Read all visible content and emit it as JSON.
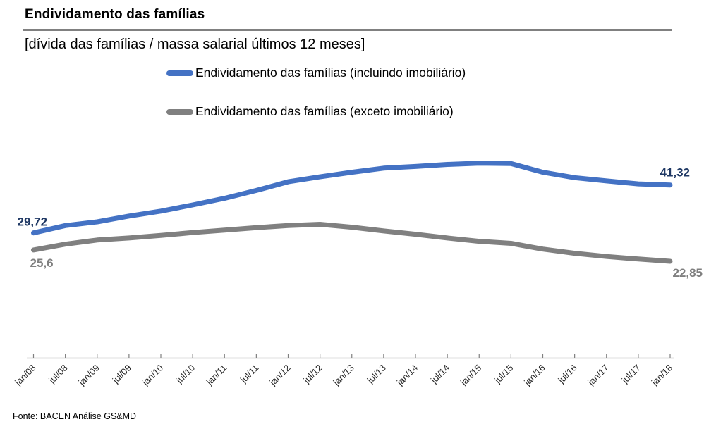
{
  "header": {
    "title": "Endividamento das famílias",
    "subtitle": "[dívida das famílias / massa salarial últimos 12 meses]"
  },
  "legend": [
    {
      "label": "Endividamento das famílias (incluindo imobiliário)",
      "color": "#4472C4"
    },
    {
      "label": "Endividamento das famílias (exceto imobiliário)",
      "color": "#808080"
    }
  ],
  "footer": {
    "source": "Fonte: BACEN Análise GS&MD"
  },
  "colors": {
    "line_blue": "#4472C4",
    "line_gray": "#808080",
    "label_navy": "#1F3864",
    "label_gray": "#7F7F7F",
    "axis": "#808080",
    "title_rule": "#808080"
  },
  "chart_data": {
    "type": "line",
    "title": "Endividamento das famílias",
    "subtitle": "[dívida das famílias / massa salarial últimos 12 meses]",
    "xlabel": "",
    "ylabel": "",
    "ylim": [
      20,
      50
    ],
    "grid": false,
    "legend_position": "top-center",
    "x_axis_visible": true,
    "y_axis_visible": false,
    "categories": [
      "jan/08",
      "jul/08",
      "jan/09",
      "jul/09",
      "jan/10",
      "jul/10",
      "jan/11",
      "jul/11",
      "jan/12",
      "jul/12",
      "jan/13",
      "jul/13",
      "jan/14",
      "jul/14",
      "jan/15",
      "jul/15",
      "jan/16",
      "jul/16",
      "jan/17",
      "jul/17",
      "jan/18"
    ],
    "series": [
      {
        "name": "Endividamento das famílias (incluindo imobiliário)",
        "color": "#4472C4",
        "label_color": "#1F3864",
        "values": [
          29.72,
          31.5,
          32.4,
          33.8,
          35.0,
          36.5,
          38.1,
          40.0,
          42.1,
          43.3,
          44.4,
          45.4,
          45.8,
          46.3,
          46.6,
          46.5,
          44.4,
          43.1,
          42.3,
          41.6,
          41.32
        ],
        "point_labels": {
          "start": "29,72",
          "end": "41,32"
        }
      },
      {
        "name": "Endividamento das famílias (exceto imobiliário)",
        "color": "#808080",
        "label_color": "#7F7F7F",
        "values": [
          25.6,
          27.0,
          28.0,
          28.5,
          29.1,
          29.8,
          30.4,
          31.0,
          31.5,
          31.8,
          31.1,
          30.2,
          29.4,
          28.5,
          27.7,
          27.2,
          25.8,
          24.8,
          24.0,
          23.4,
          22.85
        ],
        "point_labels": {
          "start": "25,6",
          "end": "22,85"
        }
      }
    ]
  }
}
